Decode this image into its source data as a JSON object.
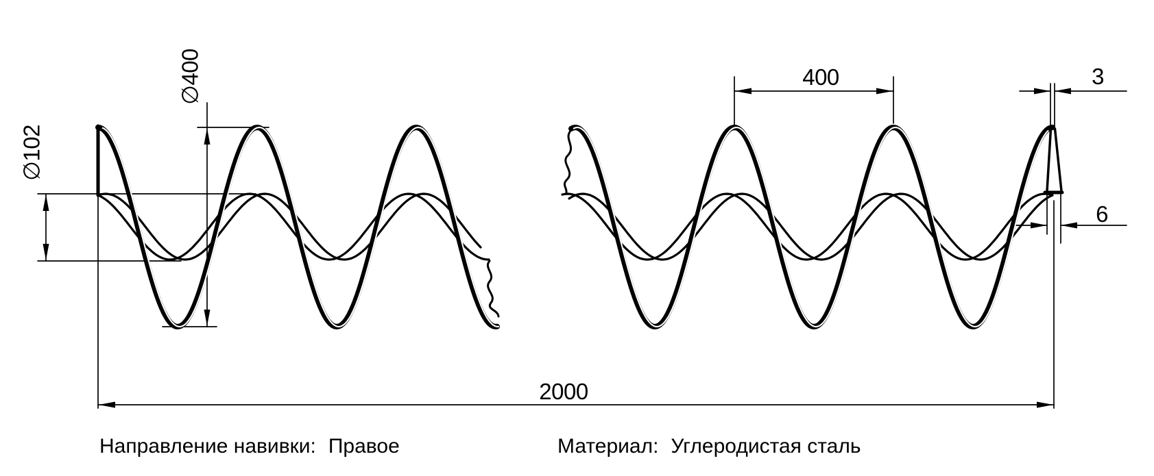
{
  "drawing": {
    "title": "spiral-screw-flight-drawing",
    "dimensions": {
      "outer_diameter": "∅400",
      "inner_diameter": "∅102",
      "pitch": "400",
      "outer_edge_thickness": "3",
      "inner_edge_thickness": "6",
      "total_length": "2000"
    },
    "notes": {
      "direction_label": "Направление навивки:",
      "direction_value": "Правое",
      "material_label": "Материал:",
      "material_value": "Углеродистая сталь"
    },
    "colors": {
      "line": "#000000",
      "background": "#ffffff"
    }
  }
}
